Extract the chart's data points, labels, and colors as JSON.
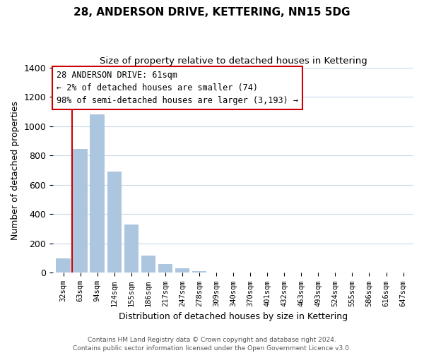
{
  "title": "28, ANDERSON DRIVE, KETTERING, NN15 5DG",
  "subtitle": "Size of property relative to detached houses in Kettering",
  "xlabel": "Distribution of detached houses by size in Kettering",
  "ylabel": "Number of detached properties",
  "categories": [
    "32sqm",
    "63sqm",
    "94sqm",
    "124sqm",
    "155sqm",
    "186sqm",
    "217sqm",
    "247sqm",
    "278sqm",
    "309sqm",
    "340sqm",
    "370sqm",
    "401sqm",
    "432sqm",
    "463sqm",
    "493sqm",
    "524sqm",
    "555sqm",
    "586sqm",
    "616sqm",
    "647sqm"
  ],
  "values": [
    100,
    845,
    1080,
    690,
    330,
    120,
    60,
    30,
    10,
    0,
    0,
    0,
    0,
    0,
    0,
    0,
    0,
    0,
    0,
    0,
    0
  ],
  "bar_color": "#adc6e0",
  "highlight_color": "#cc0000",
  "annotation_title": "28 ANDERSON DRIVE: 61sqm",
  "annotation_line1": "← 2% of detached houses are smaller (74)",
  "annotation_line2": "98% of semi-detached houses are larger (3,193) →",
  "annotation_box_color": "#cc0000",
  "ylim": [
    0,
    1400
  ],
  "yticks": [
    0,
    200,
    400,
    600,
    800,
    1000,
    1200,
    1400
  ],
  "footer_line1": "Contains HM Land Registry data © Crown copyright and database right 2024.",
  "footer_line2": "Contains public sector information licensed under the Open Government Licence v3.0.",
  "background_color": "#ffffff",
  "grid_color": "#c8d8e8"
}
